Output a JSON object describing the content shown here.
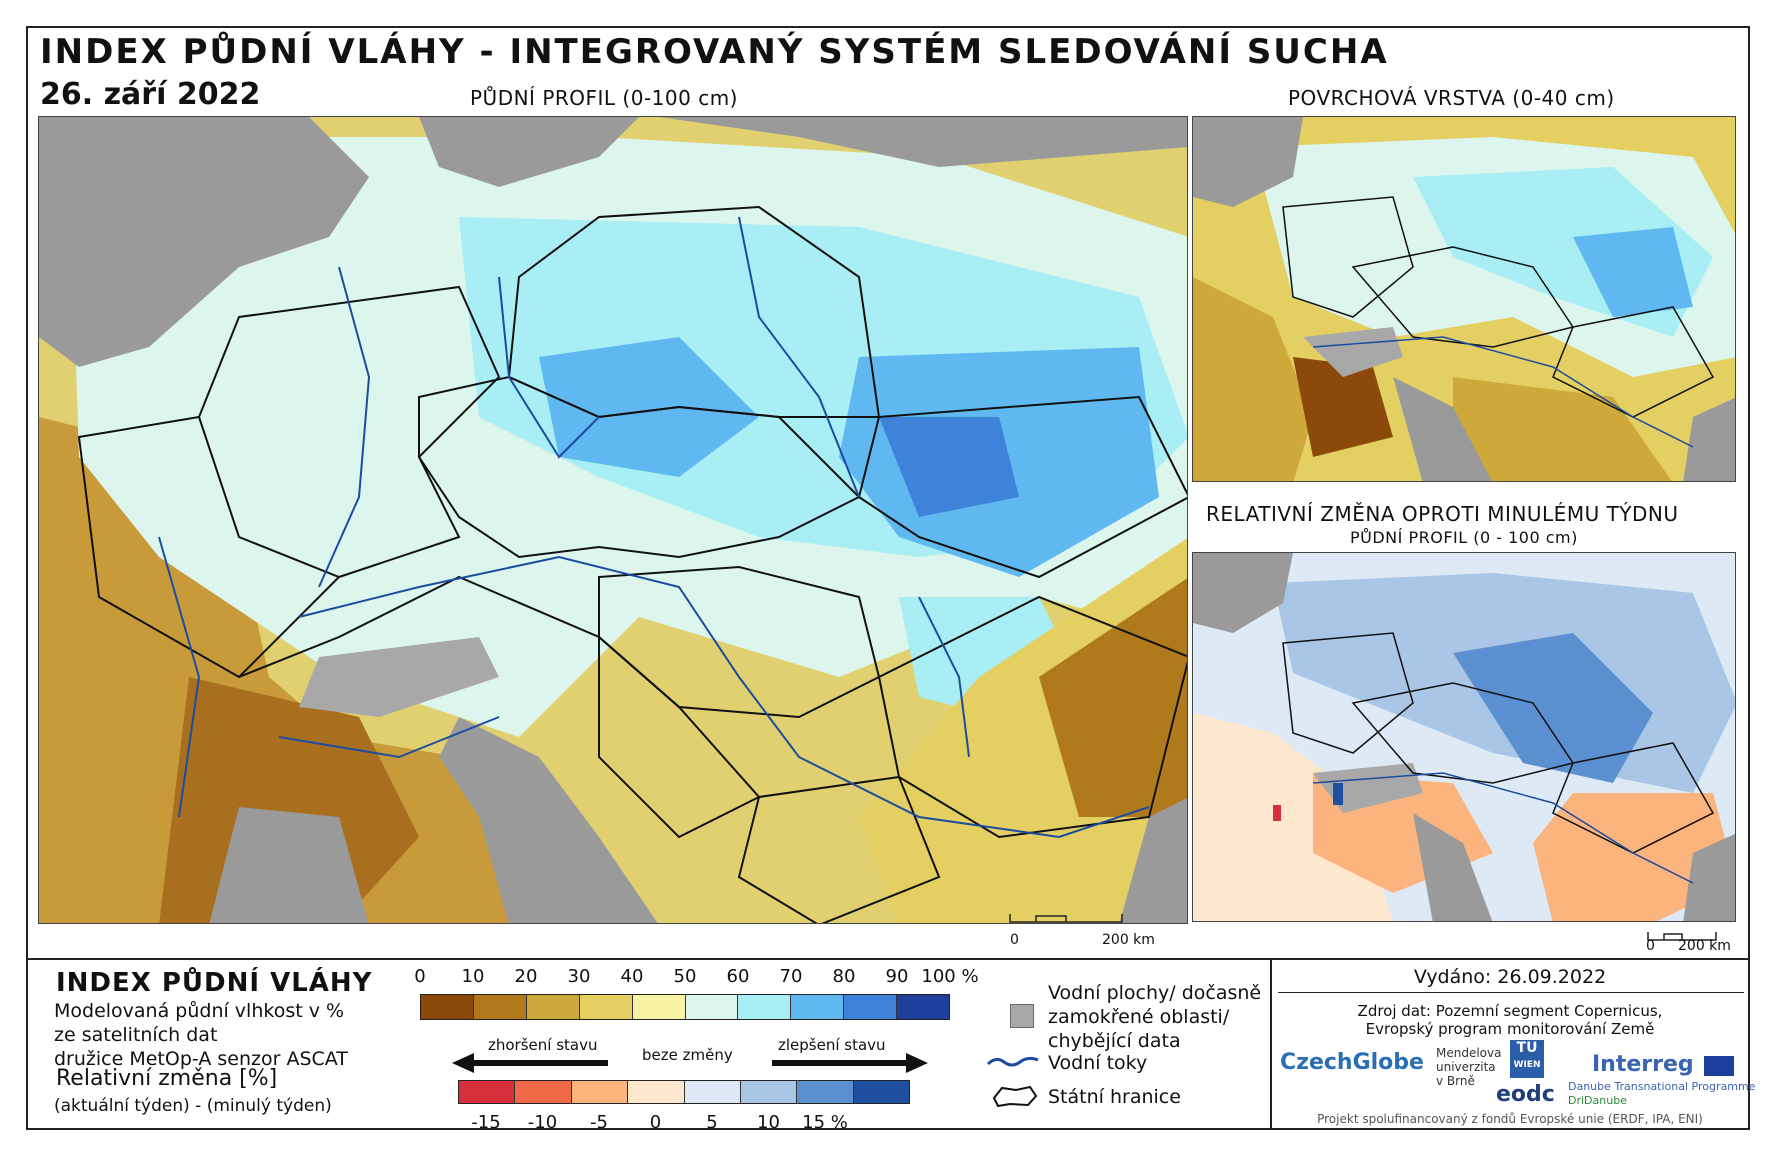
{
  "header": {
    "title": "INDEX PŮDNÍ VLÁHY - INTEGROVANÝ SYSTÉM SLEDOVÁNÍ SUCHA",
    "date": "26. září 2022"
  },
  "maps": {
    "main_caption": "PŮDNÍ PROFIL (0-100 cm)",
    "surface_caption": "POVRCHOVÁ VRSTVA (0-40 cm)",
    "change_caption": "RELATIVNÍ ZMĚNA OPROTI MINULÉMU TÝDNU",
    "change_subcaption": "PŮDNÍ PROFIL (0 - 100 cm)",
    "scale_zero": "0",
    "scale_main": "200 km",
    "scale_small": "200 km"
  },
  "legend": {
    "title": "INDEX PŮDNÍ VLÁHY",
    "desc_lines": [
      "Modelovaná půdní vlhkost v %",
      "ze satelitních dat",
      "družice MetOp-A senzor ASCAT"
    ],
    "rel_title": "Relativní změna [%]",
    "rel_sub": "(aktuální týden) - (minulý týden)",
    "index_ticks": [
      "0",
      "10",
      "20",
      "30",
      "40",
      "50",
      "60",
      "70",
      "80",
      "90",
      "100 %"
    ],
    "index_colors": [
      "#8c4a0a",
      "#b07a1c",
      "#cfa83b",
      "#e4cf63",
      "#f7f2a5",
      "#dcf6ee",
      "#a8eef4",
      "#5fb9f0",
      "#3e82da",
      "#1f3f9c"
    ],
    "change_ticks": [
      "-15",
      "-10",
      "-5",
      "0",
      "5",
      "10",
      "15 %"
    ],
    "change_colors": [
      "#d7303a",
      "#f06a4a",
      "#fbb47e",
      "#fde8cf",
      "#dde9f4",
      "#a9c6e6",
      "#5a8fd0",
      "#1f4f9e"
    ],
    "worse_label": "zhoršení stavu",
    "nochange_label": "beze změny",
    "better_label": "zlepšení stavu",
    "water_label_lines": [
      "Vodní plochy/ dočasně",
      "zamokřené oblasti/",
      "chybějící data"
    ],
    "rivers_label": "Vodní toky",
    "borders_label": "Státní hranice"
  },
  "footer": {
    "issued": "Vydáno: 26.09.2022",
    "source_line1": "Zdroj dat: Pozemní segment Copernicus,",
    "source_line2": "Evropský program monitorování Země",
    "logo_czechglobe": "CzechGlobe",
    "logo_mendel_lines": [
      "Mendelova",
      "univerzita",
      "v Brně"
    ],
    "logo_tu": "TU",
    "logo_wien": "WIEN",
    "logo_eodc": "eodc",
    "logo_interreg": "Interreg",
    "logo_danube": "Danube Transnational Programme",
    "logo_dridanube": "DriDanube",
    "funding": "Projekt spolufinancovaný z fondů Evropské unie (ERDF, IPA, ENI)"
  }
}
